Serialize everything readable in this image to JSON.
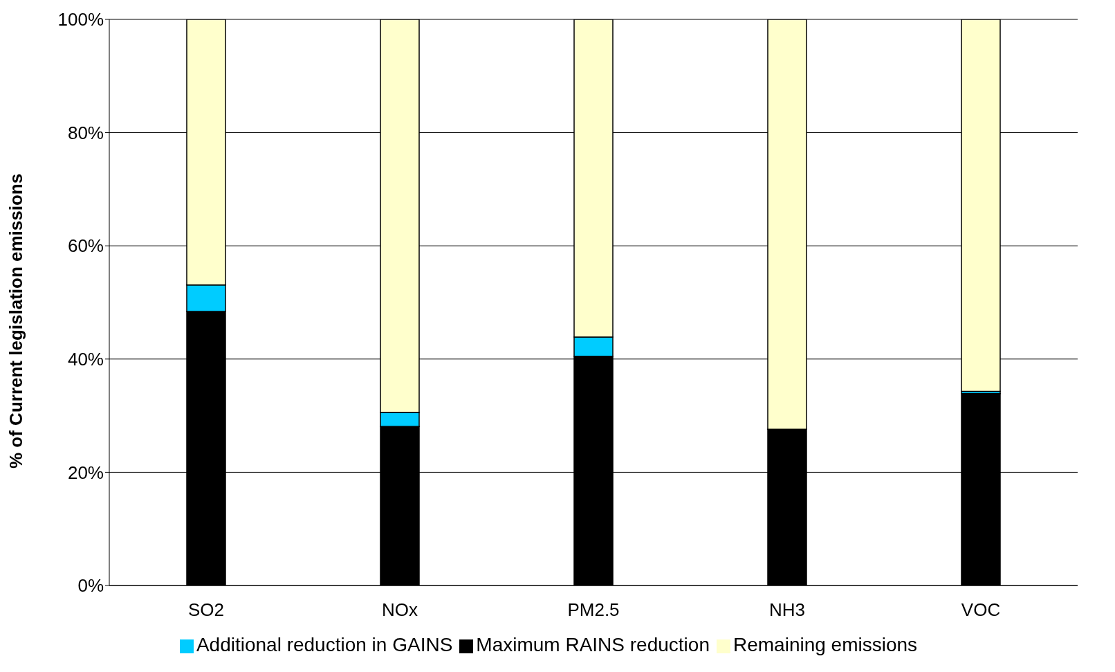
{
  "chart_data": {
    "type": "bar",
    "ylabel": "% of Current legislation emissions",
    "categories": [
      "SO2",
      "NOx",
      "PM2.5",
      "NH3",
      "VOC"
    ],
    "stacked": true,
    "series": [
      {
        "name": "Maximum RAINS reduction",
        "color": "#000000",
        "values": [
          48.4,
          28.1,
          40.5,
          27.6,
          33.9
        ]
      },
      {
        "name": "Additional reduction in GAINS",
        "color": "#00ccff",
        "values": [
          4.7,
          2.5,
          3.4,
          0,
          0.4
        ]
      },
      {
        "name": "Remaining emissions",
        "color": "#ffffcc",
        "values": [
          46.9,
          69.4,
          56.1,
          72.4,
          65.7
        ]
      }
    ],
    "ylim": [
      0,
      100
    ],
    "yticks": [
      {
        "value": 0,
        "label": "0%"
      },
      {
        "value": 20,
        "label": "20%"
      },
      {
        "value": 40,
        "label": "40%"
      },
      {
        "value": 60,
        "label": "60%"
      },
      {
        "value": 80,
        "label": "80%"
      },
      {
        "value": 100,
        "label": "100%"
      }
    ],
    "grid": "y",
    "legend": "bottom"
  }
}
